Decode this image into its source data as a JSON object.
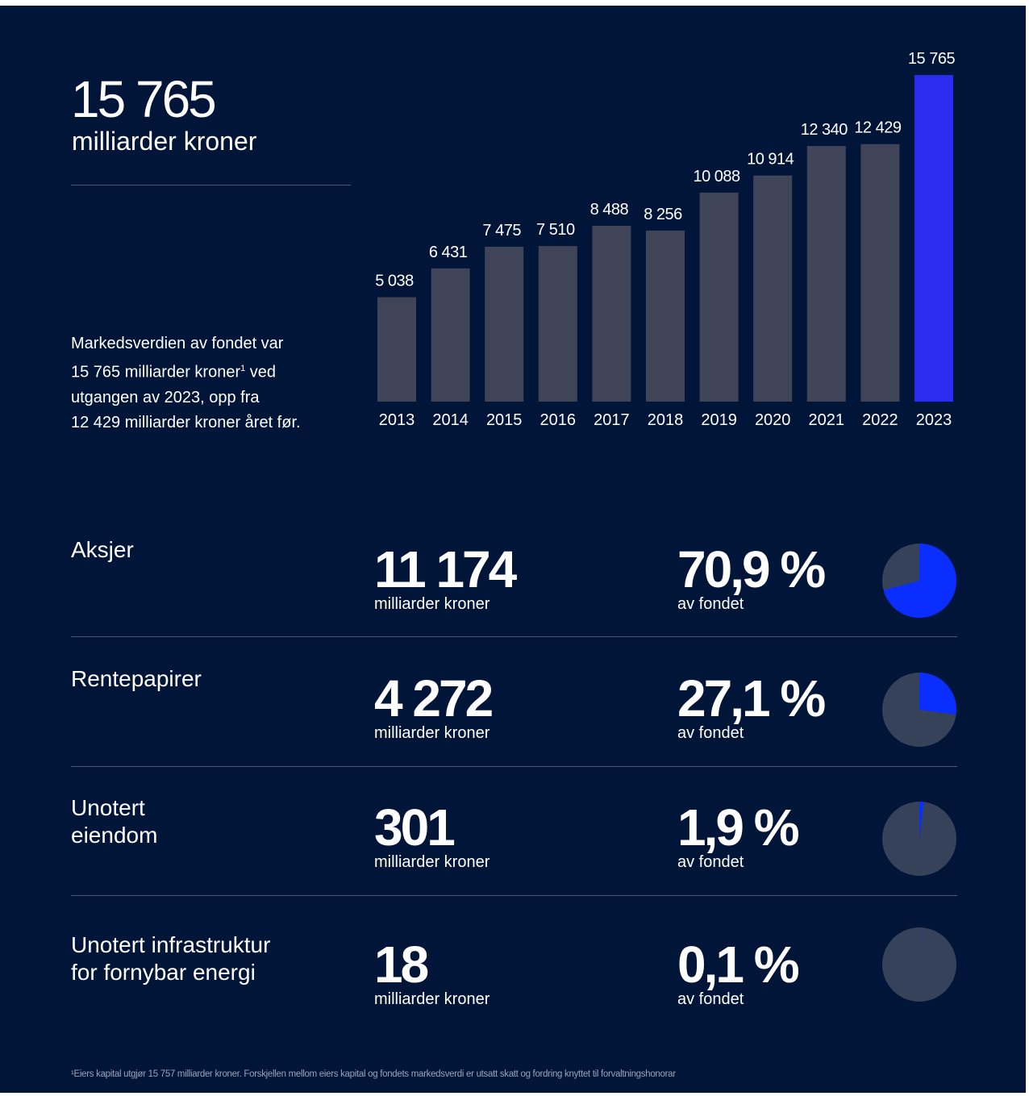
{
  "headline": {
    "value": "15 765",
    "unit": "milliarder kroner"
  },
  "intro": {
    "line1": "Markedsverdien av fondet var",
    "line2_pre": "15 765 milliarder kroner",
    "line2_sup": "1",
    "line2_post": " ved",
    "line3": "utgangen av 2023, opp fra",
    "line4": "12 429 milliarder kroner året før."
  },
  "colors": {
    "background": "#011538",
    "bar": "#3f4458",
    "bar_highlight": "#2a2df0",
    "pie_share": "#0a2eff",
    "pie_rest": "#36415a"
  },
  "chart_data": {
    "type": "bar",
    "categories": [
      "2013",
      "2014",
      "2015",
      "2016",
      "2017",
      "2018",
      "2019",
      "2020",
      "2021",
      "2022",
      "2023"
    ],
    "values": [
      5038,
      6431,
      7475,
      7510,
      8488,
      8256,
      10088,
      10914,
      12340,
      12429,
      15765
    ],
    "value_labels": [
      "5 038",
      "6 431",
      "7 475",
      "7 510",
      "8 488",
      "8 256",
      "10 088",
      "10 914",
      "12 340",
      "12 429",
      "15 765"
    ],
    "highlight": "2023",
    "ylim": [
      0,
      15765
    ],
    "grid": false
  },
  "assets": [
    {
      "label": "Aksjer",
      "value": "11 174",
      "unit": "milliarder kroner",
      "pct_label": "70,9 %",
      "pct_sub": "av fondet",
      "share": 70.9
    },
    {
      "label": "Rentepapirer",
      "value": "4 272",
      "unit": "milliarder kroner",
      "pct_label": "27,1 %",
      "pct_sub": "av fondet",
      "share": 27.1
    },
    {
      "label": "Unotert\neiendom",
      "value": "301",
      "unit": "milliarder kroner",
      "pct_label": "1,9 %",
      "pct_sub": "av fondet",
      "share": 1.9
    },
    {
      "label": "Unotert infrastruktur\nfor fornybar energi",
      "value": "18",
      "unit": "milliarder kroner",
      "pct_label": "0,1 %",
      "pct_sub": "av fondet",
      "share": 0.1
    }
  ],
  "footnote": "¹Eiers kapital utgjør 15 757 milliarder kroner. Forskjellen mellom eiers kapital og fondets markedsverdi er utsatt skatt og fordring knyttet til forvaltningshonorar"
}
